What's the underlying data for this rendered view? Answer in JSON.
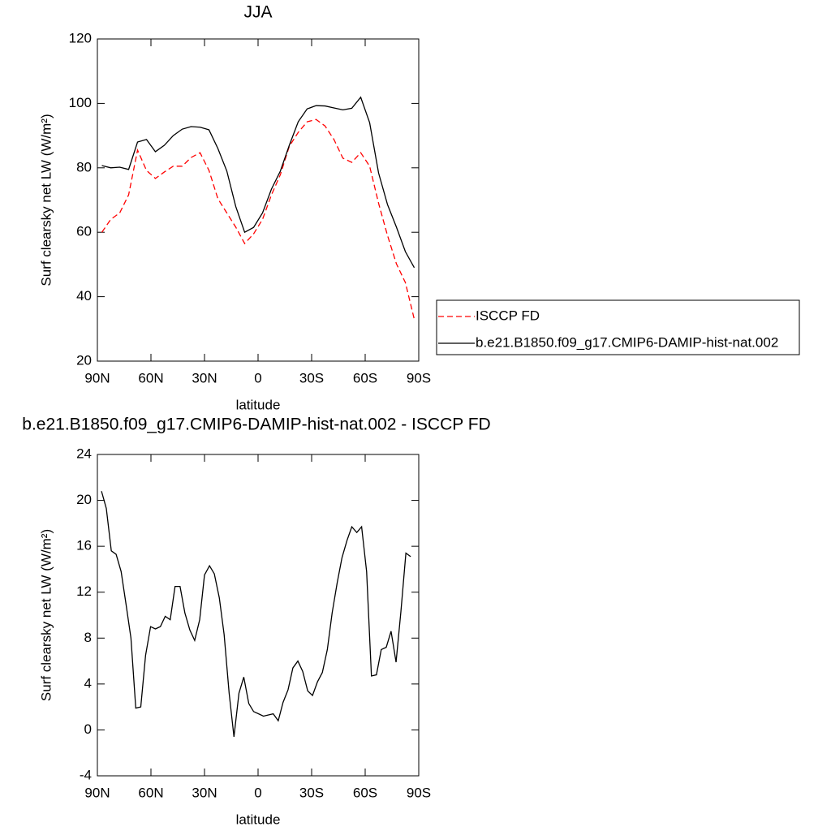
{
  "chart_data": [
    {
      "type": "line",
      "title": "JJA",
      "x_label": "latitude",
      "y_label": "Surf clearsky net LW (W/m²)",
      "x": [
        -87.5,
        -82.5,
        -77.5,
        -72.5,
        -67.5,
        -62.5,
        -57.5,
        -52.5,
        -47.5,
        -42.5,
        -37.5,
        -32.5,
        -27.5,
        -22.5,
        -17.5,
        -12.5,
        -7.5,
        -2.5,
        2.5,
        7.5,
        12.5,
        17.5,
        22.5,
        27.5,
        32.5,
        37.5,
        42.5,
        47.5,
        52.5,
        57.5,
        62.5,
        67.5,
        72.5,
        77.5,
        82.5,
        87.5
      ],
      "series": [
        {
          "name": "ISCCP FD",
          "color": "#ff0000",
          "dashed": true,
          "values": [
            60,
            64,
            66,
            71.6,
            85.5,
            79.2,
            76.7,
            78.7,
            80.5,
            80.5,
            83.2,
            84.7,
            79.2,
            70.4,
            66,
            61.6,
            56.5,
            59.5,
            64,
            71.6,
            77.9,
            86.7,
            91,
            94.3,
            95,
            93,
            88.8,
            83,
            81.7,
            84.7,
            80.5,
            69,
            59,
            50.2,
            44.4,
            33
          ]
        },
        {
          "name": "b.e21.B1850.f09_g17.CMIP6-DAMIP-hist-nat.002",
          "color": "#000000",
          "dashed": false,
          "values": [
            80.7,
            80,
            80.2,
            79.5,
            88,
            88.8,
            85,
            87,
            90,
            92,
            92.8,
            92.6,
            91.8,
            86,
            79,
            68,
            60,
            61.5,
            66,
            73.4,
            79,
            87,
            94.3,
            98.3,
            99.3,
            99.2,
            98.6,
            98,
            98.5,
            101.9,
            94,
            78.4,
            68.6,
            61.6,
            54,
            49
          ]
        }
      ],
      "xlim": [
        -90,
        90
      ],
      "xticks": [
        {
          "value": -90,
          "label": "90N"
        },
        {
          "value": -60,
          "label": "60N"
        },
        {
          "value": -30,
          "label": "30N"
        },
        0,
        {
          "value": 30,
          "label": "30S"
        },
        {
          "value": 60,
          "label": "60S"
        },
        {
          "value": 90,
          "label": "90S"
        }
      ],
      "ylim": [
        20,
        120
      ],
      "yticks": [
        20,
        40,
        60,
        80,
        100,
        120
      ],
      "legend": "outside-right"
    },
    {
      "type": "line",
      "title": "b.e21.B1850.f09_g17.CMIP6-DAMIP-hist-nat.002 - ISCCP FD",
      "x_label": "latitude",
      "y_label": "Surf clearsky net LW (W/m²)",
      "x": [
        -87.7,
        -85.0,
        -82.2,
        -79.5,
        -76.7,
        -74.0,
        -71.2,
        -68.5,
        -65.7,
        -63.0,
        -60.2,
        -57.5,
        -54.7,
        -52.0,
        -49.2,
        -46.5,
        -43.7,
        -41.0,
        -38.2,
        -35.5,
        -32.7,
        -30.0,
        -27.2,
        -24.5,
        -21.7,
        -19.0,
        -16.2,
        -13.5,
        -10.7,
        -8.0,
        -5.2,
        -2.5,
        0.3,
        3.0,
        5.8,
        8.5,
        11.3,
        14.0,
        16.8,
        19.5,
        22.3,
        25.0,
        27.8,
        30.5,
        33.3,
        36.0,
        38.8,
        41.5,
        44.3,
        47.0,
        49.8,
        52.5,
        55.3,
        58.0,
        60.8,
        63.5,
        66.3,
        69.0,
        71.8,
        74.5,
        77.3,
        80.0,
        82.8,
        85.5
      ],
      "series": [
        {
          "color": "#000000",
          "dashed": false,
          "values": [
            20.8,
            19.3,
            15.6,
            15.3,
            13.8,
            11,
            8,
            1.9,
            2,
            6.5,
            9,
            8.8,
            9,
            9.9,
            9.6,
            12.5,
            12.5,
            10.2,
            8.7,
            7.8,
            9.6,
            13.5,
            14.3,
            13.6,
            11.5,
            8.3,
            3.2,
            -0.6,
            3.2,
            4.6,
            2.3,
            1.6,
            1.4,
            1.2,
            1.3,
            1.4,
            0.8,
            2.4,
            3.5,
            5.4,
            6,
            5.1,
            3.4,
            3,
            4.2,
            5,
            7,
            10.2,
            12.8,
            15,
            16.5,
            17.7,
            17.2,
            17.7,
            13.8,
            4.7,
            4.8,
            7,
            7.2,
            8.6,
            5.9,
            10.3,
            15.4,
            15.1
          ]
        }
      ],
      "xlim": [
        -90,
        90
      ],
      "xticks": [
        {
          "value": -90,
          "label": "90N"
        },
        {
          "value": -60,
          "label": "60N"
        },
        {
          "value": -30,
          "label": "30N"
        },
        0,
        {
          "value": 30,
          "label": "30S"
        },
        {
          "value": 60,
          "label": "60S"
        },
        {
          "value": 90,
          "label": "90S"
        }
      ],
      "ylim": [
        -4,
        24
      ],
      "yticks": [
        -4,
        0,
        4,
        8,
        12,
        16,
        20,
        24
      ]
    }
  ]
}
